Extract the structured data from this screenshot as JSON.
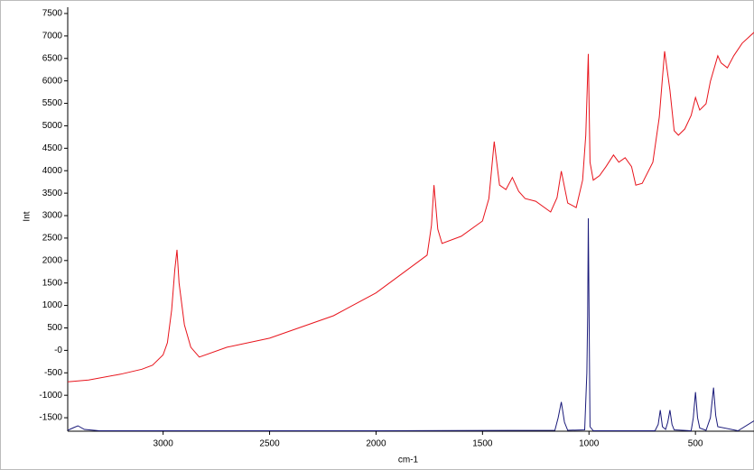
{
  "chart_data": {
    "type": "line",
    "x_label": "cm-1",
    "y_label": "Int",
    "xlim": [
      3448,
      225
    ],
    "ylim": [
      -1800,
      7640
    ],
    "xticks": [
      3000,
      2500,
      2000,
      1500,
      1000,
      500
    ],
    "yticks": [
      7500,
      7000,
      6500,
      6000,
      5500,
      5000,
      4500,
      4000,
      3500,
      3000,
      2500,
      2000,
      1500,
      1000,
      500,
      {
        "value": 0,
        "label": "-0"
      },
      -500,
      -1000,
      -1500
    ],
    "series": [
      {
        "color": "#e8141c",
        "x": [
          3448,
          3350,
          3200,
          3100,
          3050,
          3000,
          2980,
          2960,
          2945,
          2935,
          2925,
          2900,
          2870,
          2830,
          2700,
          2500,
          2200,
          2000,
          1800,
          1760,
          1740,
          1728,
          1710,
          1690,
          1600,
          1500,
          1470,
          1445,
          1420,
          1390,
          1360,
          1330,
          1300,
          1250,
          1180,
          1150,
          1130,
          1100,
          1060,
          1030,
          1015,
          1003,
          995,
          980,
          950,
          920,
          885,
          860,
          830,
          800,
          780,
          750,
          700,
          670,
          645,
          620,
          600,
          580,
          550,
          520,
          500,
          480,
          450,
          430,
          395,
          380,
          350,
          320,
          280,
          225
        ],
        "values": [
          -700,
          -660,
          -530,
          -420,
          -330,
          -100,
          170,
          900,
          1800,
          2240,
          1500,
          570,
          70,
          -150,
          70,
          270,
          770,
          1280,
          1980,
          2120,
          2780,
          3680,
          2700,
          2380,
          2540,
          2880,
          3380,
          4650,
          3680,
          3580,
          3850,
          3540,
          3380,
          3320,
          3080,
          3400,
          3990,
          3280,
          3180,
          3790,
          4790,
          6600,
          4190,
          3790,
          3890,
          4090,
          4350,
          4190,
          4290,
          4090,
          3680,
          3720,
          4190,
          5190,
          6660,
          5790,
          4890,
          4790,
          4930,
          5230,
          5630,
          5350,
          5490,
          5990,
          6560,
          6400,
          6290,
          6560,
          6840,
          7080
        ]
      },
      {
        "color": "#1a1a7a",
        "x": [
          3448,
          3420,
          3400,
          3370,
          3300,
          2000,
          1160,
          1145,
          1130,
          1115,
          1100,
          1020,
          1010,
          1006,
          1003,
          999,
          995,
          980,
          690,
          675,
          665,
          655,
          640,
          630,
          620,
          610,
          600,
          520,
          510,
          500,
          490,
          480,
          450,
          430,
          415,
          405,
          395,
          300,
          225
        ],
        "values": [
          -1780,
          -1720,
          -1680,
          -1760,
          -1790,
          -1790,
          -1780,
          -1500,
          -1150,
          -1600,
          -1780,
          -1770,
          -500,
          770,
          2940,
          500,
          -1700,
          -1790,
          -1790,
          -1650,
          -1330,
          -1700,
          -1760,
          -1600,
          -1330,
          -1650,
          -1770,
          -1790,
          -1500,
          -930,
          -1500,
          -1730,
          -1780,
          -1500,
          -830,
          -1450,
          -1700,
          -1790,
          -1570
        ]
      }
    ]
  }
}
